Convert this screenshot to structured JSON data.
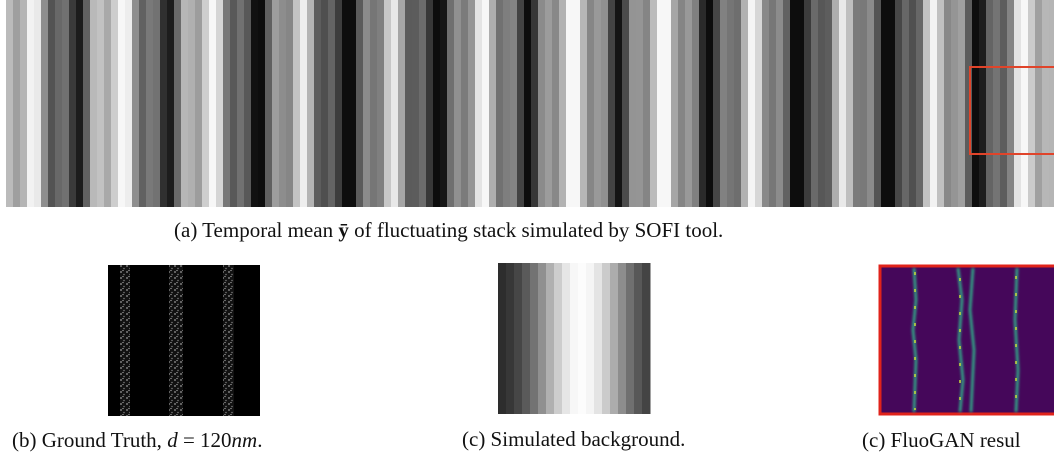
{
  "figure": {
    "panel_a": {
      "caption_prefix": "(a) Temporal mean ",
      "caption_symbol": "ȳ",
      "caption_suffix": " of fluctuating stack simulated by SOFI tool."
    },
    "panel_b": {
      "caption_prefix": "(b) Ground Truth, ",
      "caption_math": "d",
      "caption_eq": " = 120",
      "caption_unit": "nm",
      "caption_end": "."
    },
    "panel_c": {
      "caption": "(c) Simulated background."
    },
    "panel_d": {
      "caption": "(c) FluoGAN resul"
    }
  }
}
